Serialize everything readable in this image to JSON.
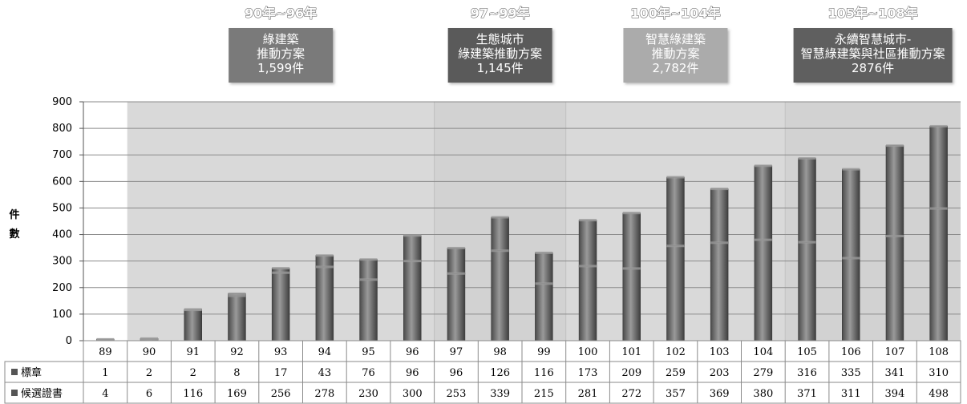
{
  "chart_data": {
    "type": "bar",
    "stacked": true,
    "categories": [
      "89",
      "90",
      "91",
      "92",
      "93",
      "94",
      "95",
      "96",
      "97",
      "98",
      "99",
      "100",
      "101",
      "102",
      "103",
      "104",
      "105",
      "106",
      "107",
      "108"
    ],
    "series": [
      {
        "name": "候選證書",
        "values": [
          4,
          6,
          116,
          169,
          256,
          278,
          230,
          300,
          253,
          339,
          215,
          281,
          272,
          357,
          369,
          380,
          371,
          311,
          394,
          498
        ]
      },
      {
        "name": "標章",
        "values": [
          1,
          2,
          2,
          8,
          17,
          43,
          76,
          96,
          96,
          126,
          116,
          173,
          209,
          259,
          203,
          279,
          316,
          335,
          341,
          310
        ]
      }
    ],
    "ylabel": "件數",
    "ylim": [
      0,
      900
    ],
    "yticks": [
      0,
      100,
      200,
      300,
      400,
      500,
      600,
      700,
      800,
      900
    ],
    "grid": true,
    "periods": [
      {
        "label": "90年~96年",
        "lines": [
          "綠建築",
          "推動方案",
          "1,599件"
        ],
        "first": 1,
        "last": 7,
        "box_color": "#7a7a7a",
        "shade": "#d9d9d9"
      },
      {
        "label": "97~99年",
        "lines": [
          "生態城市",
          "綠建築推動方案",
          "1,145件"
        ],
        "first": 8,
        "last": 10,
        "box_color": "#5a5a5a",
        "shade": "#d2d2d2"
      },
      {
        "label": "100年~104年",
        "lines": [
          "智慧綠建築",
          "推動方案",
          "2,782件"
        ],
        "first": 11,
        "last": 15,
        "box_color": "#ababab",
        "shade": "#d9d9d9"
      },
      {
        "label": "105年~108年",
        "lines": [
          "永續智慧城市-",
          "智慧綠建築與社區推動方案",
          "2876件"
        ],
        "first": 16,
        "last": 19,
        "box_color": "#5e5e5e",
        "shade": "#d2d2d2"
      }
    ]
  },
  "colors": {
    "bar": "#6b6b6b",
    "bar_highlight": "#9c9c9c",
    "grid": "#8a8a8a"
  }
}
